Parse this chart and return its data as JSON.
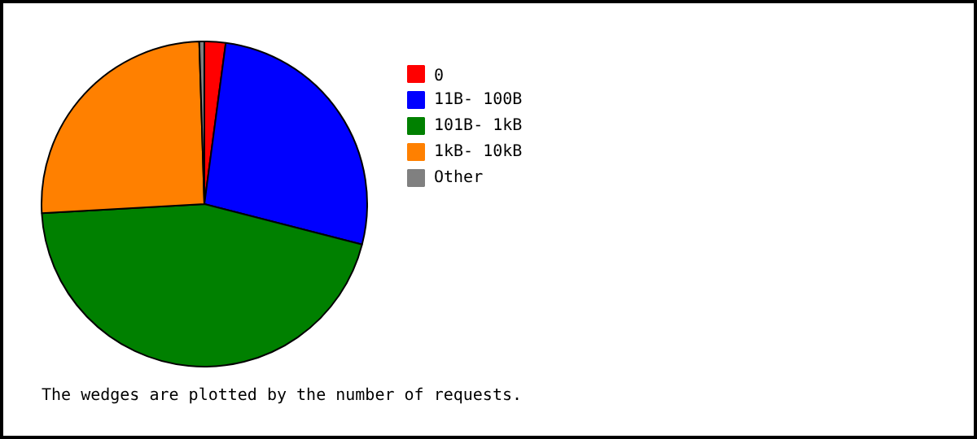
{
  "chart_data": {
    "type": "pie",
    "categories": [
      "0",
      "11B- 100B",
      "101B- 1kB",
      "1kB- 10kB",
      "Other"
    ],
    "values": [
      2.1,
      26.9,
      45.1,
      25.4,
      0.5
    ],
    "colors": [
      "#ff0000",
      "#0000ff",
      "#008000",
      "#ff8000",
      "#808080"
    ],
    "legend": "right",
    "annotations": [
      "The wedges are plotted by the number of requests."
    ]
  }
}
